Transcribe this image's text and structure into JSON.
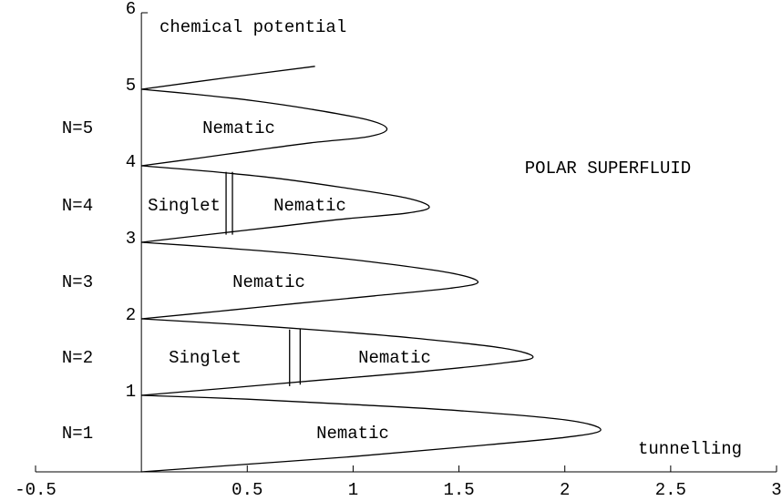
{
  "chart_data": {
    "type": "line",
    "xlabel": "tunnelling",
    "ylabel": "chemical potential",
    "xlim": [
      -0.5,
      3
    ],
    "ylim": [
      0,
      6
    ],
    "xticks": [
      -0.5,
      0.5,
      1,
      1.5,
      2,
      2.5,
      3
    ],
    "yticks": [
      1,
      2,
      3,
      4,
      5,
      6
    ],
    "color": "#000000",
    "series": [
      {
        "x": [
          0,
          0.5,
          1.0,
          1.5,
          2.0,
          2.17,
          2.0,
          1.5,
          1.0,
          0.5,
          0
        ],
        "values": [
          0,
          0.1,
          0.2,
          0.32,
          0.45,
          0.55,
          0.68,
          0.8,
          0.88,
          0.95,
          1
        ]
      },
      {
        "x": [
          0,
          0.43,
          0.85,
          1.28,
          1.7,
          1.85,
          1.7,
          1.28,
          0.85,
          0.43,
          0
        ],
        "values": [
          1,
          1.1,
          1.2,
          1.3,
          1.42,
          1.5,
          1.62,
          1.75,
          1.85,
          1.93,
          2
        ]
      },
      {
        "x": [
          0,
          0.37,
          0.73,
          1.1,
          1.46,
          1.59,
          1.46,
          1.1,
          0.73,
          0.37,
          0
        ],
        "values": [
          2,
          2.1,
          2.2,
          2.3,
          2.4,
          2.48,
          2.6,
          2.74,
          2.85,
          2.93,
          3
        ]
      },
      {
        "x": [
          0,
          0.31,
          0.63,
          0.94,
          1.25,
          1.36,
          1.25,
          0.94,
          0.63,
          0.31,
          0
        ],
        "values": [
          3,
          3.1,
          3.2,
          3.3,
          3.38,
          3.46,
          3.58,
          3.72,
          3.84,
          3.93,
          4
        ]
      },
      {
        "x": [
          0,
          0.27,
          0.53,
          0.8,
          1.07,
          1.16,
          1.07,
          0.8,
          0.53,
          0.27,
          0
        ],
        "values": [
          4,
          4.1,
          4.2,
          4.3,
          4.38,
          4.48,
          4.6,
          4.74,
          4.85,
          4.93,
          5
        ]
      },
      {
        "x": [
          0,
          0.4,
          0.82
        ],
        "values": [
          5,
          5.15,
          5.3
        ]
      },
      {
        "x": [
          0.7,
          0.7
        ],
        "values": [
          1.12,
          1.86
        ]
      },
      {
        "x": [
          0.75,
          0.75
        ],
        "values": [
          1.14,
          1.87
        ]
      },
      {
        "x": [
          0.4,
          0.4
        ],
        "values": [
          3.1,
          3.92
        ]
      },
      {
        "x": [
          0.43,
          0.43
        ],
        "values": [
          3.1,
          3.92
        ]
      }
    ],
    "annotations": [
      "POLAR SUPERFLUID",
      "N=1",
      "N=2",
      "N=3",
      "N=4",
      "N=5",
      "Nematic",
      "Nematic",
      "Nematic",
      "Nematic",
      "Nematic",
      "Singlet",
      "Singlet"
    ]
  }
}
